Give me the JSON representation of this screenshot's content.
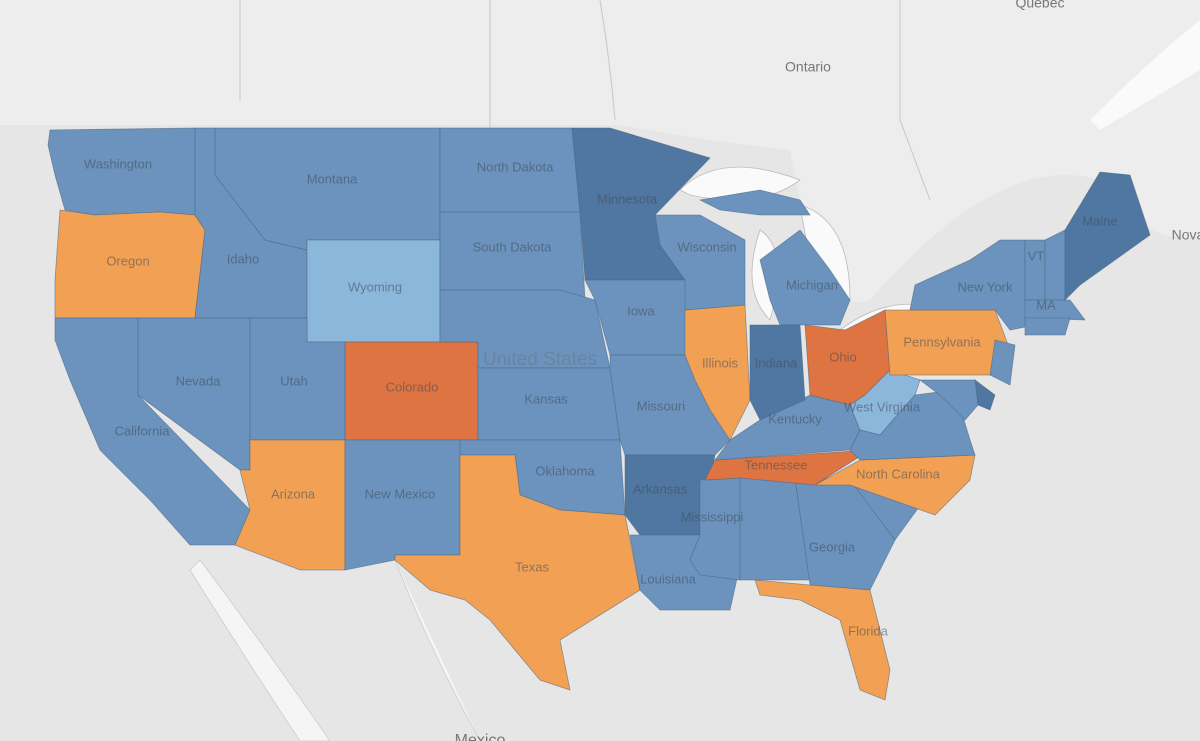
{
  "map": {
    "background_labels": [
      "Québec",
      "Ontario",
      "Nova",
      "United States",
      "Mexico"
    ],
    "states": [
      {
        "label": "Washington",
        "color": "#6b93bd"
      },
      {
        "label": "Oregon",
        "color": "#f2a154"
      },
      {
        "label": "California",
        "color": "#6b93bd"
      },
      {
        "label": "Nevada",
        "color": "#6b93bd"
      },
      {
        "label": "Idaho",
        "color": "#6b93bd"
      },
      {
        "label": "Montana",
        "color": "#6b93bd"
      },
      {
        "label": "Wyoming",
        "color": "#8bb7db"
      },
      {
        "label": "Utah",
        "color": "#6b93bd"
      },
      {
        "label": "Colorado",
        "color": "#dd7441"
      },
      {
        "label": "Arizona",
        "color": "#f2a154"
      },
      {
        "label": "New Mexico",
        "color": "#6b93bd"
      },
      {
        "label": "North Dakota",
        "color": "#6b93bd"
      },
      {
        "label": "South Dakota",
        "color": "#6b93bd"
      },
      {
        "color": "#6b93bd"
      },
      {
        "label": "Kansas",
        "color": "#6b93bd"
      },
      {
        "label": "Oklahoma",
        "color": "#6b93bd"
      },
      {
        "label": "Texas",
        "color": "#f2a154"
      },
      {
        "label": "Minnesota",
        "color": "#4f77a1"
      },
      {
        "label": "Iowa",
        "color": "#6b93bd"
      },
      {
        "label": "Missouri",
        "color": "#6b93bd"
      },
      {
        "label": "Arkansas",
        "color": "#4f77a1"
      },
      {
        "label": "Louisiana",
        "color": "#6b93bd"
      },
      {
        "label": "Mississippi",
        "color": "#6b93bd"
      },
      {
        "color": "#6b93bd"
      },
      {
        "label": "Georgia",
        "color": "#6b93bd"
      },
      {
        "label": "Florida",
        "color": "#f2a154"
      },
      {
        "color": "#6b93bd"
      },
      {
        "label": "North Carolina",
        "color": "#f2a154"
      },
      {
        "label": "Tennessee",
        "color": "#dd7441"
      },
      {
        "label": "Kentucky",
        "color": "#6b93bd"
      },
      {
        "label": "Illinois",
        "color": "#f2a154"
      },
      {
        "label": "Wisconsin",
        "color": "#6b93bd"
      },
      {
        "label": "Michigan",
        "color": "#6b93bd"
      },
      {
        "label": "Indiana",
        "color": "#4f77a1"
      },
      {
        "label": "Ohio",
        "color": "#dd7441"
      },
      {
        "label": "West Virginia",
        "color": "#8bb7db"
      },
      {
        "color": "#6b93bd"
      },
      {
        "label": "Pennsylvania",
        "color": "#f2a154"
      },
      {
        "label": "New York",
        "color": "#6b93bd"
      },
      {
        "color": "#6b93bd"
      },
      {
        "color": "#4f77a1"
      },
      {
        "color": "#6b93bd"
      },
      {
        "label": "VT",
        "color": "#6b93bd"
      },
      {
        "color": "#6b93bd"
      },
      {
        "label": "MA",
        "color": "#6b93bd"
      },
      {
        "color": "#6b93bd"
      },
      {
        "label": "Maine",
        "color": "#4f77a1"
      }
    ]
  }
}
